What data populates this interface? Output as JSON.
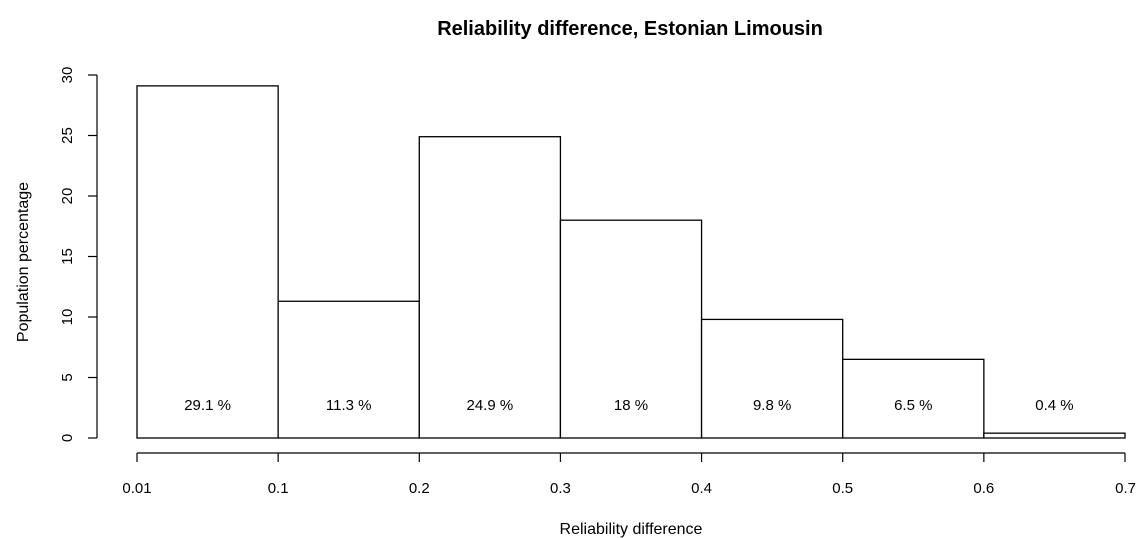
{
  "chart_data": {
    "type": "bar",
    "title": "Reliability difference, Estonian Limousin",
    "xlabel": "Reliability difference",
    "ylabel": "Population percentage",
    "bin_edges": [
      "0.01",
      "0.1",
      "0.2",
      "0.3",
      "0.4",
      "0.5",
      "0.6",
      "0.7"
    ],
    "values": [
      29.1,
      11.3,
      24.9,
      18,
      9.8,
      6.5,
      0.4
    ],
    "bar_labels": [
      "29.1 %",
      "11.3 %",
      "24.9 %",
      "18 %",
      "9.8 %",
      "6.5 %",
      "0.4 %"
    ],
    "yticks": [
      "0",
      "5",
      "10",
      "15",
      "20",
      "25",
      "30"
    ],
    "ylim": [
      0,
      30
    ],
    "grid": false,
    "legend": "none",
    "bar_fill": "#ffffff",
    "bar_stroke": "#000000"
  }
}
